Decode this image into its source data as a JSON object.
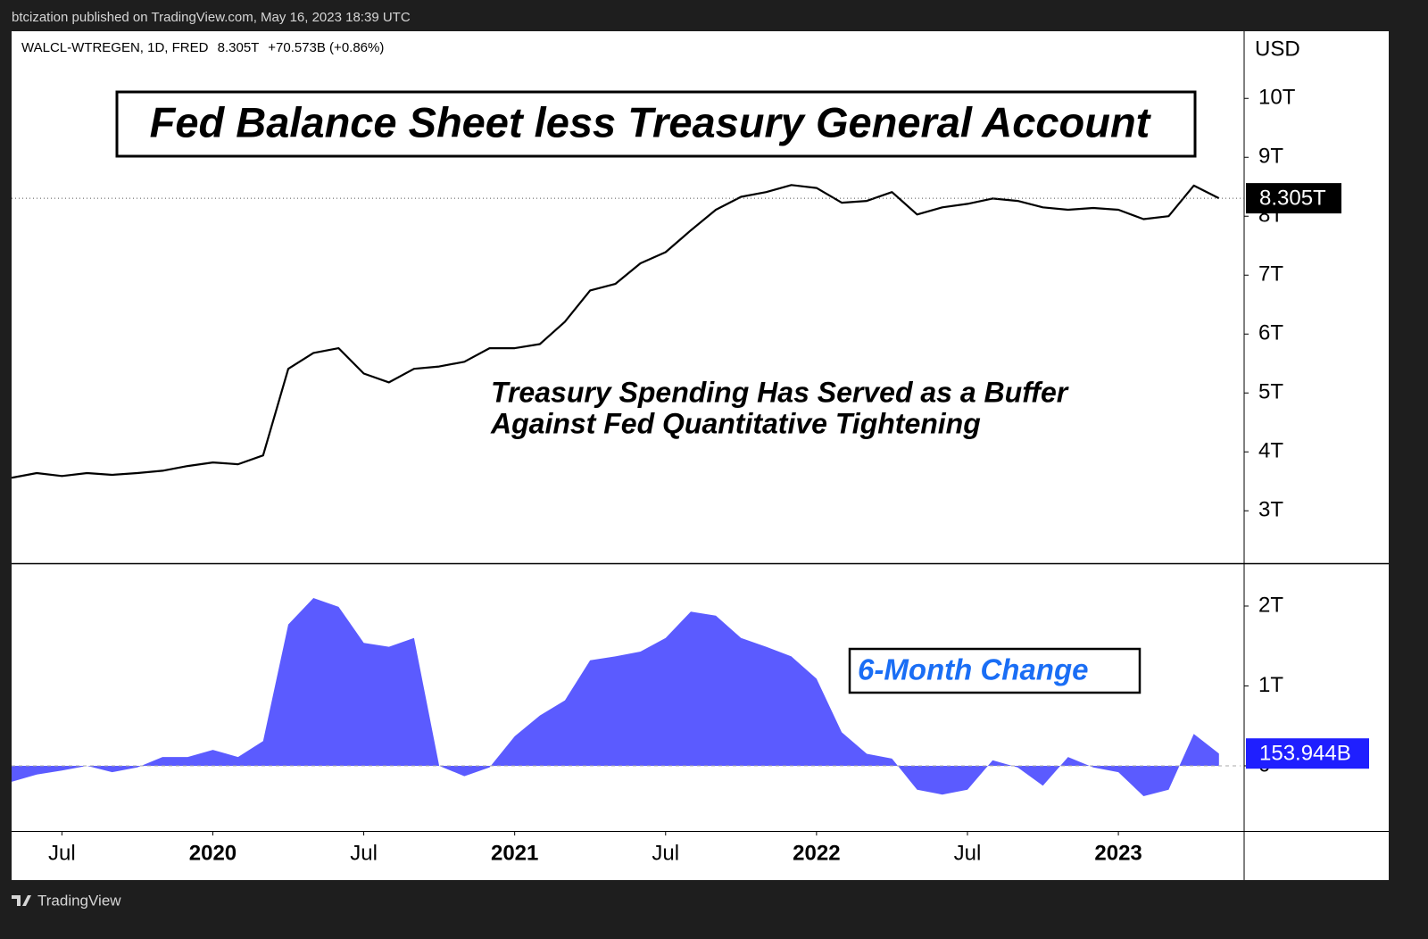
{
  "header": "btcization published on TradingView.com, May 16, 2023 18:39 UTC",
  "footer": "TradingView",
  "chart_data": [
    {
      "type": "line",
      "title": "Fed Balance Sheet less Treasury General Account",
      "annotations": [
        "Treasury Spending Has Served as a Buffer",
        "Against Fed Quantitative Tightening"
      ],
      "legend": {
        "symbol": "WALCL-WTREGEN, 1D, FRED",
        "last": "8.305T",
        "change": "+70.573B (+0.86%)"
      },
      "y_unit": "USD",
      "x": [
        "2019-05",
        "2019-06",
        "2019-07",
        "2019-08",
        "2019-09",
        "2019-10",
        "2019-11",
        "2019-12",
        "2020-01",
        "2020-02",
        "2020-03",
        "2020-04",
        "2020-05",
        "2020-06",
        "2020-07",
        "2020-08",
        "2020-09",
        "2020-10",
        "2020-11",
        "2020-12",
        "2021-01",
        "2021-02",
        "2021-03",
        "2021-04",
        "2021-05",
        "2021-06",
        "2021-07",
        "2021-08",
        "2021-09",
        "2021-10",
        "2021-11",
        "2021-12",
        "2022-01",
        "2022-02",
        "2022-03",
        "2022-04",
        "2022-05",
        "2022-06",
        "2022-07",
        "2022-08",
        "2022-09",
        "2022-10",
        "2022-11",
        "2022-12",
        "2023-01",
        "2023-02",
        "2023-03",
        "2023-04",
        "2023-05"
      ],
      "xlim": [
        "2019-05",
        "2023-06"
      ],
      "series": [
        {
          "name": "WALCL-WTREGEN",
          "color": "#000000",
          "values": [
            3.56,
            3.64,
            3.59,
            3.64,
            3.61,
            3.64,
            3.68,
            3.76,
            3.82,
            3.79,
            3.94,
            5.41,
            5.68,
            5.76,
            5.33,
            5.18,
            5.41,
            5.45,
            5.53,
            5.76,
            5.76,
            5.83,
            6.21,
            6.74,
            6.85,
            7.2,
            7.39,
            7.76,
            8.11,
            8.33,
            8.41,
            8.53,
            8.48,
            8.23,
            8.26,
            8.41,
            8.03,
            8.15,
            8.21,
            8.3,
            8.26,
            8.15,
            8.11,
            8.14,
            8.11,
            7.95,
            8.0,
            8.52,
            8.305
          ],
          "value_labels": [
            null,
            null,
            null,
            null,
            null,
            null,
            null,
            null,
            null,
            null,
            null,
            null,
            null,
            null,
            null,
            null,
            null,
            null,
            null,
            null,
            null,
            null,
            null,
            null,
            null,
            null,
            null,
            null,
            null,
            null,
            null,
            null,
            null,
            null,
            null,
            null,
            null,
            null,
            null,
            null,
            null,
            null,
            null,
            null,
            null,
            null,
            null,
            null,
            "8.305T"
          ]
        }
      ],
      "ylim": [
        2.11,
        11.14
      ],
      "yticks": [
        {
          "value": 3,
          "label": "3T"
        },
        {
          "value": 4,
          "label": "4T"
        },
        {
          "value": 5,
          "label": "5T"
        },
        {
          "value": 6,
          "label": "6T"
        },
        {
          "value": 7,
          "label": "7T"
        },
        {
          "value": 8,
          "label": "8T"
        },
        {
          "value": 9,
          "label": "9T"
        },
        {
          "value": 10,
          "label": "10T"
        }
      ]
    },
    {
      "type": "area",
      "title": "6-Month Change",
      "x": [
        "2019-05",
        "2019-06",
        "2019-07",
        "2019-08",
        "2019-09",
        "2019-10",
        "2019-11",
        "2019-12",
        "2020-01",
        "2020-02",
        "2020-03",
        "2020-04",
        "2020-05",
        "2020-06",
        "2020-07",
        "2020-08",
        "2020-09",
        "2020-10",
        "2020-11",
        "2020-12",
        "2021-01",
        "2021-02",
        "2021-03",
        "2021-04",
        "2021-05",
        "2021-06",
        "2021-07",
        "2021-08",
        "2021-09",
        "2021-10",
        "2021-11",
        "2021-12",
        "2022-01",
        "2022-02",
        "2022-03",
        "2022-04",
        "2022-05",
        "2022-06",
        "2022-07",
        "2022-08",
        "2022-09",
        "2022-10",
        "2022-11",
        "2022-12",
        "2023-01",
        "2023-02",
        "2023-03",
        "2023-04",
        "2023-05"
      ],
      "xlim": [
        "2019-05",
        "2023-06"
      ],
      "xticks": [
        {
          "value": "2019-07",
          "label": "Jul"
        },
        {
          "value": "2020-01",
          "label": "2020"
        },
        {
          "value": "2020-07",
          "label": "Jul"
        },
        {
          "value": "2021-01",
          "label": "2021"
        },
        {
          "value": "2021-07",
          "label": "Jul"
        },
        {
          "value": "2022-01",
          "label": "2022"
        },
        {
          "value": "2022-07",
          "label": "Jul"
        },
        {
          "value": "2023-01",
          "label": "2023"
        }
      ],
      "series": [
        {
          "name": "6-Month Change",
          "color": "#5b5bff",
          "values": [
            -0.2,
            -0.11,
            -0.06,
            0.0,
            -0.08,
            -0.02,
            0.11,
            0.11,
            0.2,
            0.11,
            0.31,
            1.77,
            2.1,
            1.99,
            1.54,
            1.49,
            1.6,
            0.0,
            -0.13,
            -0.02,
            0.37,
            0.63,
            0.82,
            1.32,
            1.37,
            1.43,
            1.6,
            1.93,
            1.88,
            1.6,
            1.49,
            1.37,
            1.09,
            0.42,
            0.15,
            0.09,
            -0.3,
            -0.36,
            -0.3,
            0.07,
            -0.02,
            -0.25,
            0.11,
            -0.02,
            -0.08,
            -0.38,
            -0.3,
            0.4,
            0.153944
          ],
          "value_labels": [
            null,
            null,
            null,
            null,
            null,
            null,
            null,
            null,
            null,
            null,
            null,
            null,
            null,
            null,
            null,
            null,
            null,
            null,
            null,
            null,
            null,
            null,
            null,
            null,
            null,
            null,
            null,
            null,
            null,
            null,
            null,
            null,
            null,
            null,
            null,
            null,
            null,
            null,
            null,
            null,
            null,
            null,
            null,
            null,
            null,
            null,
            null,
            null,
            "153.944B"
          ]
        }
      ],
      "ylim": [
        -0.816,
        2.525
      ],
      "yticks": [
        0,
        {
          "value": 1,
          "label": "1T"
        },
        {
          "value": 2,
          "label": "2T"
        }
      ]
    }
  ]
}
